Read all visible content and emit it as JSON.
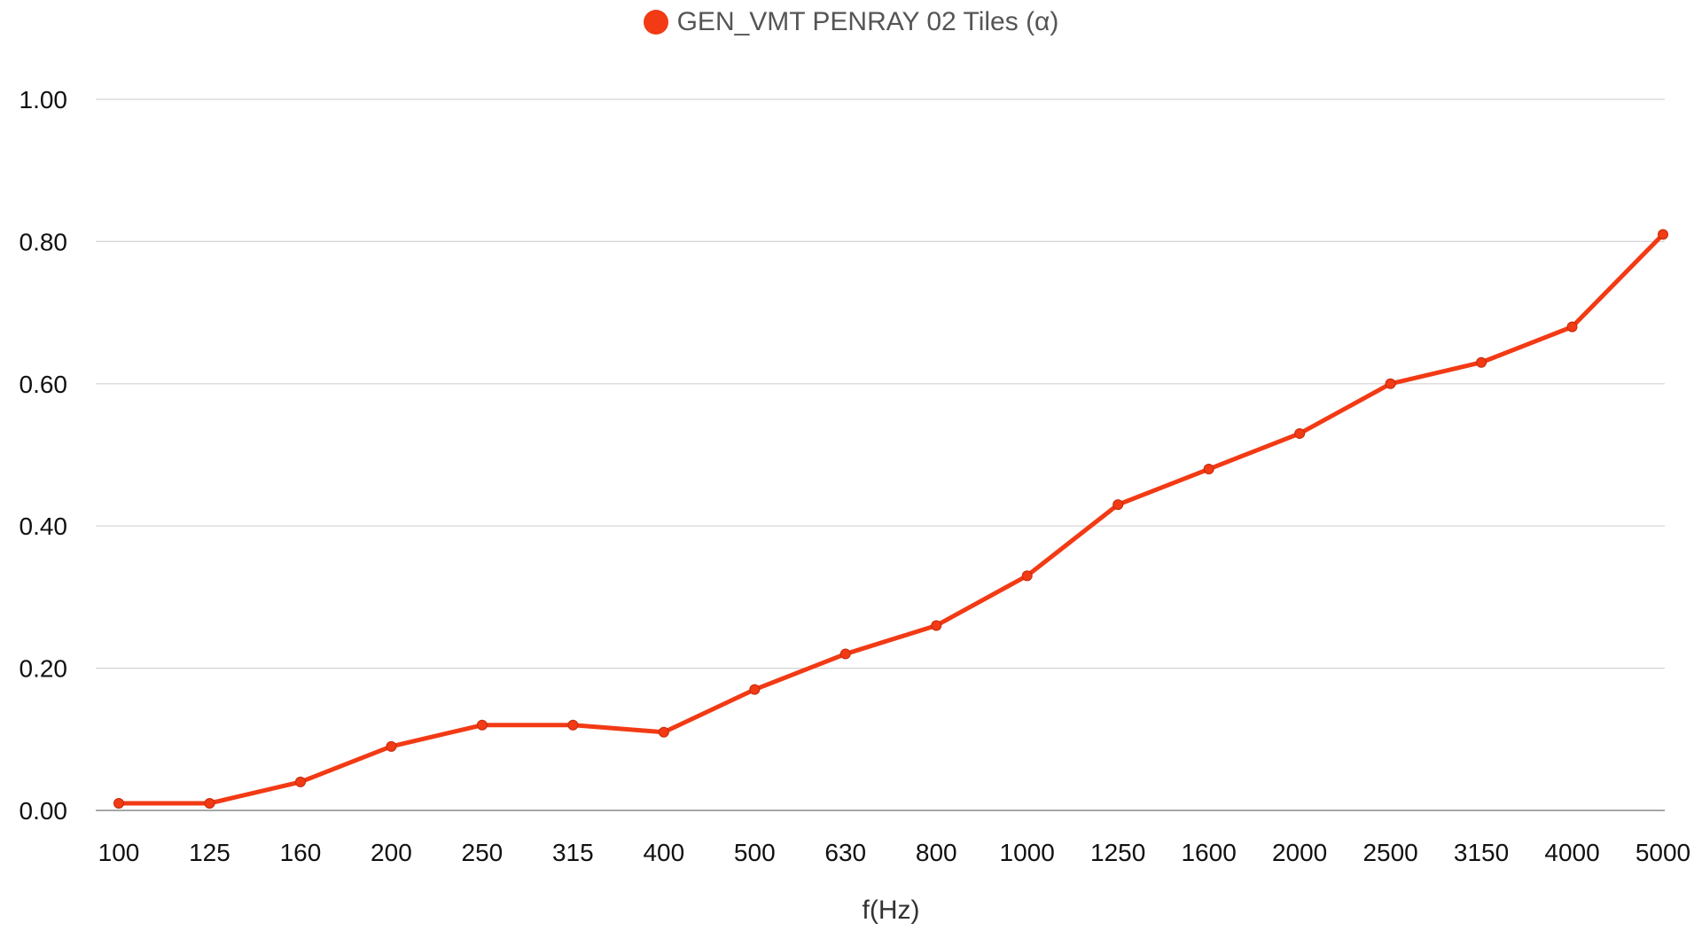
{
  "legend": {
    "label": "GEN_VMT PENRAY 02 Tiles (α)",
    "color": "#f23a14"
  },
  "chart_data": {
    "type": "line",
    "title": "",
    "xlabel": "f(Hz)",
    "ylabel": "",
    "categories": [
      "100",
      "125",
      "160",
      "200",
      "250",
      "315",
      "400",
      "500",
      "630",
      "800",
      "1000",
      "1250",
      "1600",
      "2000",
      "2500",
      "3150",
      "4000",
      "5000"
    ],
    "ylim": [
      0,
      1
    ],
    "yticks": [
      "0.00",
      "0.20",
      "0.40",
      "0.60",
      "0.80",
      "1.00"
    ],
    "grid": true,
    "legend_position": "top-center",
    "series": [
      {
        "name": "GEN_VMT PENRAY 02 Tiles (α)",
        "color": "#f23a14",
        "values": [
          0.01,
          0.01,
          0.04,
          0.09,
          0.12,
          0.12,
          0.11,
          0.17,
          0.22,
          0.26,
          0.33,
          0.43,
          0.48,
          0.53,
          0.6,
          0.63,
          0.68,
          0.81
        ]
      }
    ]
  }
}
